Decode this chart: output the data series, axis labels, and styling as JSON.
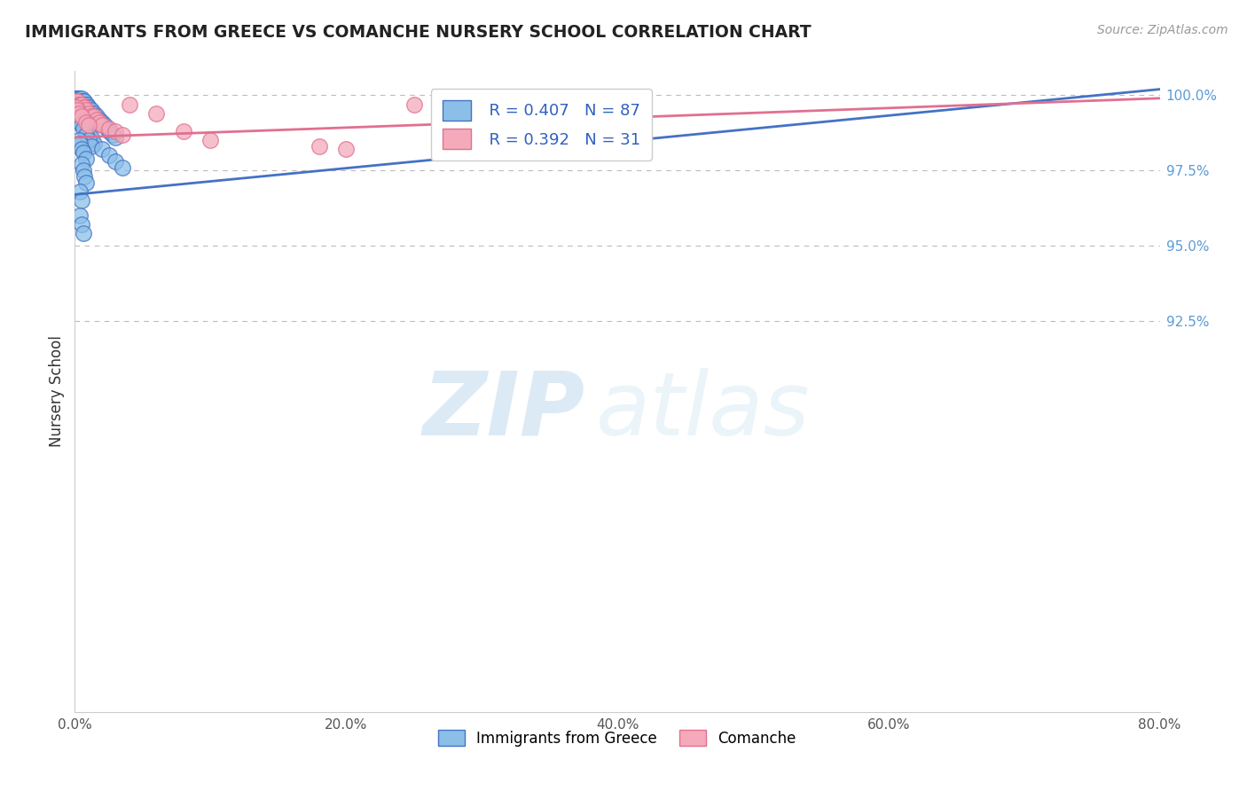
{
  "title": "IMMIGRANTS FROM GREECE VS COMANCHE NURSERY SCHOOL CORRELATION CHART",
  "source": "Source: ZipAtlas.com",
  "ylabel": "Nursery School",
  "legend_label1": "Immigrants from Greece",
  "legend_label2": "Comanche",
  "R1": 0.407,
  "N1": 87,
  "R2": 0.392,
  "N2": 31,
  "xlim": [
    0.0,
    0.8
  ],
  "ylim": [
    0.795,
    1.008
  ],
  "xtick_labels": [
    "0.0%",
    "20.0%",
    "40.0%",
    "60.0%",
    "80.0%"
  ],
  "xtick_vals": [
    0.0,
    0.2,
    0.4,
    0.6,
    0.8
  ],
  "ytick_right_labels": [
    "100.0%",
    "97.5%",
    "95.0%",
    "92.5%"
  ],
  "ytick_right_vals": [
    1.0,
    0.975,
    0.95,
    0.925
  ],
  "color_blue": "#8BBFE8",
  "color_pink": "#F4AABB",
  "line_blue": "#4472C4",
  "line_pink": "#E07090",
  "background": "#FFFFFF",
  "watermark_zip": "ZIP",
  "watermark_atlas": "atlas",
  "blue_scatter_x": [
    0.001,
    0.001,
    0.001,
    0.002,
    0.002,
    0.002,
    0.003,
    0.003,
    0.003,
    0.004,
    0.004,
    0.004,
    0.005,
    0.005,
    0.005,
    0.006,
    0.006,
    0.006,
    0.007,
    0.007,
    0.008,
    0.008,
    0.009,
    0.009,
    0.01,
    0.01,
    0.011,
    0.012,
    0.013,
    0.014,
    0.015,
    0.016,
    0.017,
    0.018,
    0.019,
    0.02,
    0.021,
    0.022,
    0.024,
    0.025,
    0.026,
    0.028,
    0.03,
    0.001,
    0.001,
    0.002,
    0.002,
    0.003,
    0.003,
    0.004,
    0.004,
    0.005,
    0.006,
    0.007,
    0.008,
    0.009,
    0.01,
    0.012,
    0.014,
    0.002,
    0.003,
    0.004,
    0.005,
    0.006,
    0.008,
    0.01,
    0.012,
    0.003,
    0.004,
    0.005,
    0.006,
    0.008,
    0.005,
    0.006,
    0.007,
    0.008,
    0.004,
    0.005,
    0.004,
    0.005,
    0.006,
    0.02,
    0.025,
    0.03,
    0.035
  ],
  "blue_scatter_y": [
    0.999,
    0.999,
    0.998,
    0.999,
    0.998,
    0.998,
    0.999,
    0.998,
    0.997,
    0.999,
    0.998,
    0.997,
    0.999,
    0.998,
    0.997,
    0.998,
    0.997,
    0.996,
    0.998,
    0.997,
    0.997,
    0.996,
    0.997,
    0.996,
    0.996,
    0.995,
    0.995,
    0.995,
    0.994,
    0.994,
    0.993,
    0.993,
    0.992,
    0.992,
    0.991,
    0.991,
    0.99,
    0.99,
    0.989,
    0.988,
    0.988,
    0.987,
    0.986,
    0.997,
    0.996,
    0.996,
    0.995,
    0.995,
    0.994,
    0.994,
    0.993,
    0.992,
    0.991,
    0.99,
    0.989,
    0.988,
    0.987,
    0.986,
    0.984,
    0.993,
    0.992,
    0.991,
    0.99,
    0.989,
    0.987,
    0.985,
    0.983,
    0.985,
    0.984,
    0.982,
    0.981,
    0.979,
    0.977,
    0.975,
    0.973,
    0.971,
    0.968,
    0.965,
    0.96,
    0.957,
    0.954,
    0.982,
    0.98,
    0.978,
    0.976
  ],
  "pink_scatter_x": [
    0.001,
    0.002,
    0.003,
    0.004,
    0.005,
    0.006,
    0.007,
    0.008,
    0.01,
    0.012,
    0.014,
    0.016,
    0.018,
    0.02,
    0.001,
    0.002,
    0.003,
    0.005,
    0.008,
    0.01,
    0.025,
    0.03,
    0.035,
    0.04,
    0.06,
    0.08,
    0.1,
    0.18,
    0.2,
    0.25,
    0.27
  ],
  "pink_scatter_y": [
    0.998,
    0.998,
    0.997,
    0.997,
    0.997,
    0.996,
    0.996,
    0.995,
    0.994,
    0.993,
    0.993,
    0.992,
    0.991,
    0.99,
    0.996,
    0.995,
    0.994,
    0.993,
    0.991,
    0.99,
    0.989,
    0.988,
    0.987,
    0.997,
    0.994,
    0.988,
    0.985,
    0.983,
    0.982,
    0.997,
    0.997
  ],
  "blue_trendline": [
    0.967,
    1.002
  ],
  "pink_trendline": [
    0.986,
    0.999
  ]
}
